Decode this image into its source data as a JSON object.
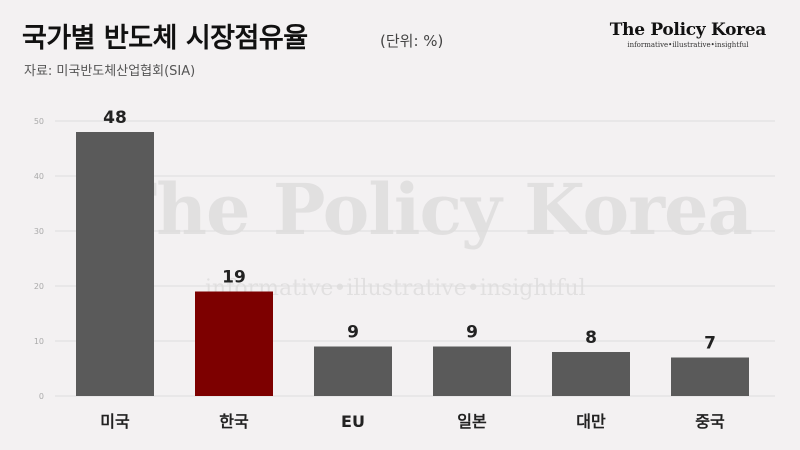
{
  "header": {
    "title": "국가별 반도체 시장점유율",
    "unit": "(단위: %)",
    "source": "자료: 미국반도체산업협회(SIA)"
  },
  "brand": {
    "name": "The Policy Korea",
    "tagline": "informative•illustrative•insightful"
  },
  "watermark": {
    "name": "The Policy Korea",
    "tagline": "informative•illustrative•insightful"
  },
  "colors": {
    "default_bar": "#5a5a5a",
    "highlight_bar": "#7d0000",
    "background": "#f3f1f2"
  },
  "chart_data": {
    "type": "bar",
    "categories": [
      "미국",
      "한국",
      "EU",
      "일본",
      "대만",
      "중국"
    ],
    "values": [
      48,
      19,
      9,
      9,
      8,
      7
    ],
    "highlight": "한국",
    "ylim": [
      0,
      50
    ],
    "yticks": [
      0,
      10,
      20,
      30,
      40,
      50
    ],
    "grid": true,
    "xlabel": "",
    "ylabel": ""
  }
}
